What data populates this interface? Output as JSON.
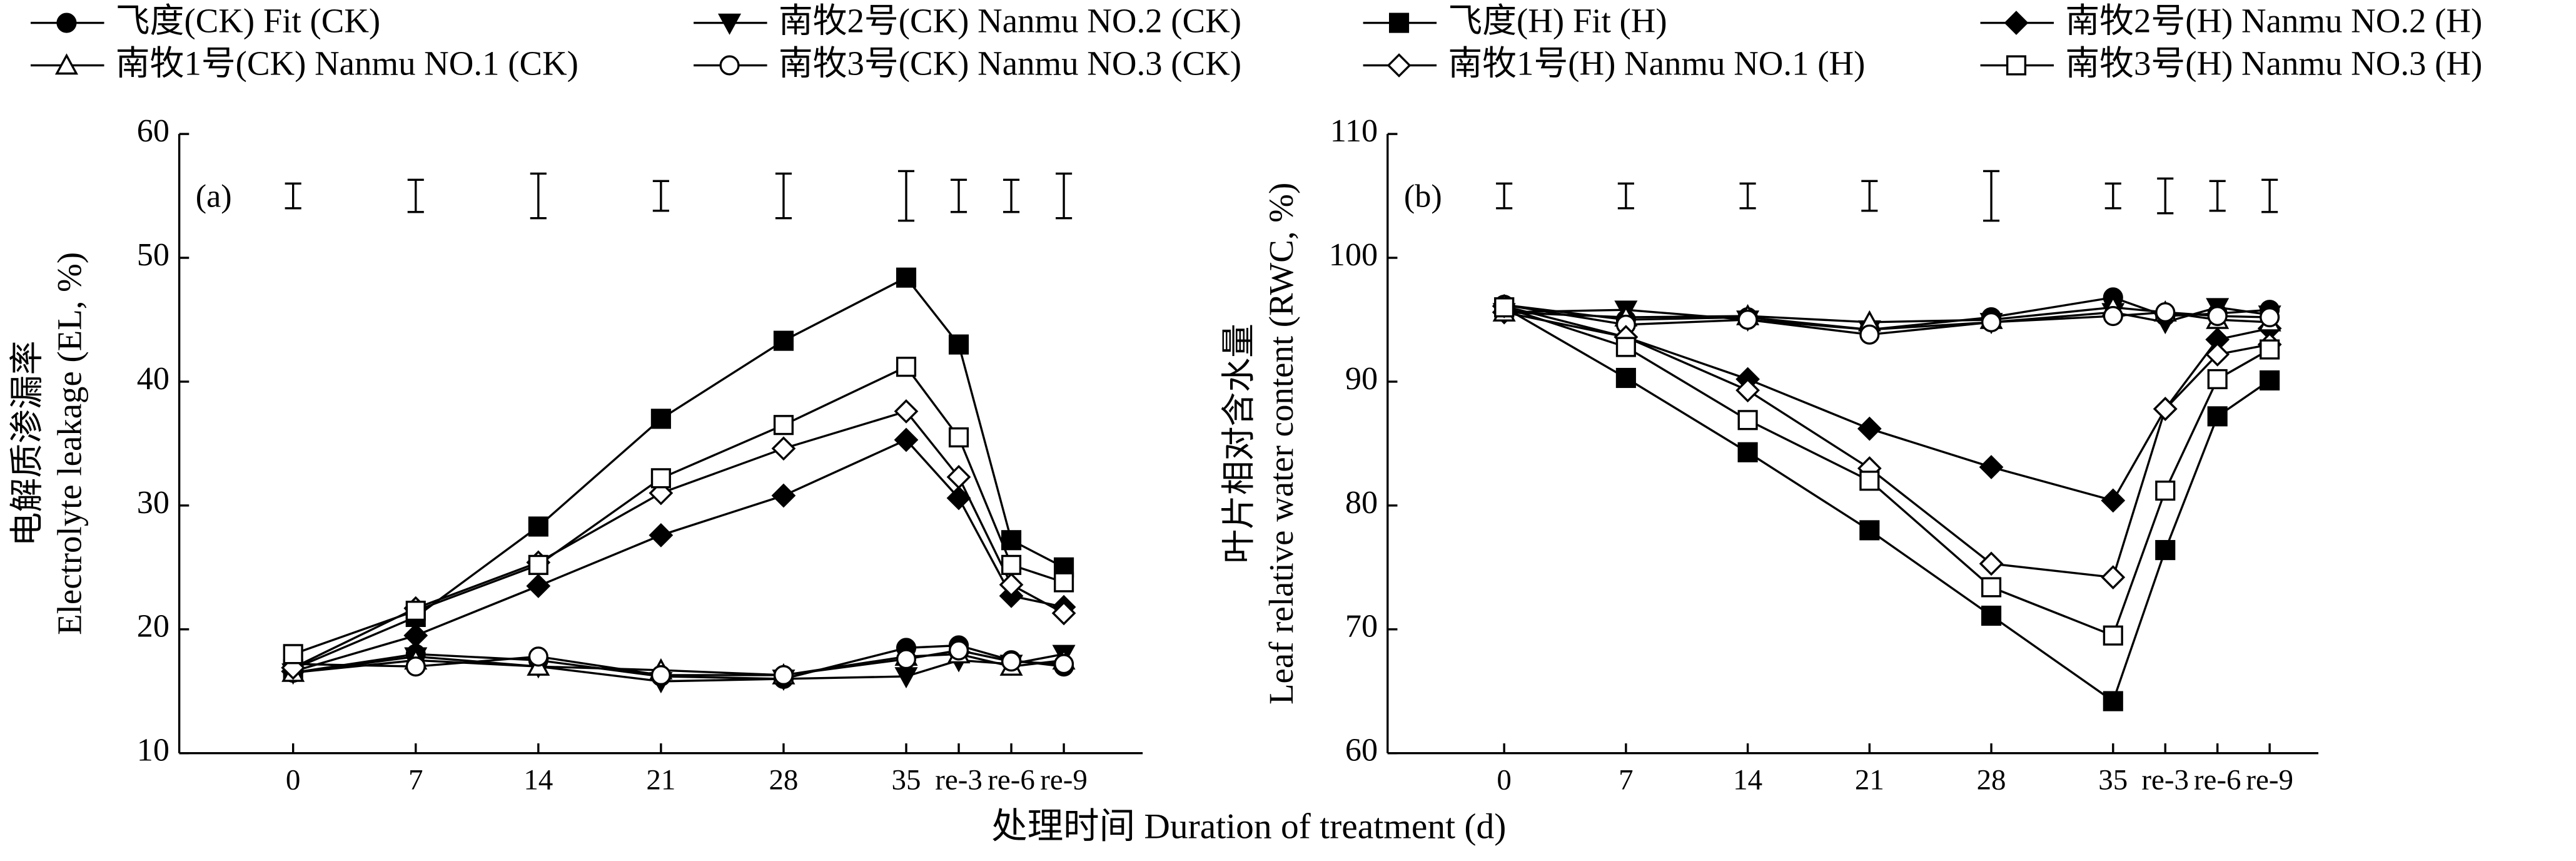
{
  "chart_data": [
    {
      "type": "line",
      "panel_label": "(a)",
      "ylabel": [
        "电解质渗漏率",
        "Electrolyte leakage (EL, %)"
      ],
      "xlabel": "处理时间 Duration of treatment (d)",
      "x": [
        0,
        7,
        14,
        21,
        28,
        35,
        38,
        41,
        44
      ],
      "xlim": [
        -6.5,
        48.5
      ],
      "xticks": [
        0,
        7,
        14,
        21,
        28,
        35,
        {
          "value": 38,
          "label": "re-3"
        },
        {
          "value": 41,
          "label": "re-6"
        },
        {
          "value": 44,
          "label": "re-9"
        }
      ],
      "ylim": [
        10,
        60
      ],
      "yticks": [
        10,
        20,
        30,
        40,
        50,
        60
      ],
      "error_bars": {
        "y": 55,
        "values": [
          1,
          1.3,
          1.8,
          1.2,
          1.8,
          2,
          1.3,
          1.3,
          1.8
        ]
      },
      "series": [
        {
          "name": "飞度(CK) Fit (CK)",
          "color": "#000000",
          "marker": "circle",
          "filled": true,
          "values": [
            16.5,
            18,
            17.5,
            16.2,
            16,
            18.5,
            18.7,
            17.5,
            17
          ]
        },
        {
          "name": "南牧2号(CK) Nanmu NO.2 (CK)",
          "color": "#000000",
          "marker": "triangle-down",
          "filled": true,
          "values": [
            16.5,
            17.8,
            17,
            15.8,
            16,
            16.2,
            17.5,
            17.2,
            18
          ]
        },
        {
          "name": "飞度(H) Fit (H)",
          "color": "#000000",
          "marker": "square",
          "filled": true,
          "values": [
            16.8,
            21,
            28.3,
            37,
            43.3,
            48.4,
            43,
            27.2,
            25
          ]
        },
        {
          "name": "南牧2号(H) Nanmu NO.2 (H)",
          "color": "#000000",
          "marker": "diamond",
          "filled": true,
          "values": [
            16.6,
            19.5,
            23.5,
            27.6,
            30.8,
            35.3,
            30.6,
            22.7,
            21.8
          ]
        },
        {
          "name": "南牧1号(CK) Nanmu NO.1 (CK)",
          "color": "#000000",
          "marker": "triangle-up",
          "filled": false,
          "values": [
            16.5,
            17.5,
            17,
            16.7,
            16.3,
            17.8,
            18,
            17,
            17.5
          ]
        },
        {
          "name": "南牧3号(CK) Nanmu NO.3 (CK)",
          "color": "#000000",
          "marker": "circle",
          "filled": false,
          "values": [
            17.2,
            17,
            17.8,
            16.3,
            16.3,
            17.6,
            18.3,
            17.4,
            17.2
          ]
        },
        {
          "name": "南牧1号(H) Nanmu NO.1 (H)",
          "color": "#000000",
          "marker": "diamond",
          "filled": false,
          "values": [
            16.9,
            21.7,
            25.4,
            31,
            34.6,
            37.6,
            32.3,
            23.6,
            21.3
          ]
        },
        {
          "name": "南牧3号(H) Nanmu NO.3 (H)",
          "color": "#000000",
          "marker": "square",
          "filled": false,
          "values": [
            18,
            21.5,
            25.2,
            32.2,
            36.5,
            41.2,
            35.5,
            25.2,
            23.8
          ]
        }
      ]
    },
    {
      "type": "line",
      "panel_label": "(b)",
      "ylabel": [
        "叶片相对含水量",
        "Leaf relative water content (RWC, %)"
      ],
      "x": [
        0,
        7,
        14,
        21,
        28,
        35,
        38,
        41,
        44
      ],
      "xlim": [
        -6.7,
        46.8
      ],
      "xticks": [
        0,
        7,
        14,
        21,
        28,
        35,
        {
          "value": 38,
          "label": "re-3"
        },
        {
          "value": 41,
          "label": "re-6"
        },
        {
          "value": 44,
          "label": "re-9"
        }
      ],
      "ylim": [
        60,
        110
      ],
      "yticks": [
        60,
        70,
        80,
        90,
        100,
        110
      ],
      "error_bars": {
        "y": 105,
        "values": [
          1,
          1,
          1,
          1.2,
          2,
          1,
          1.4,
          1.2,
          1.3
        ]
      },
      "series": [
        {
          "color": "#000000",
          "marker": "circle",
          "filled": true,
          "values": [
            96.2,
            95,
            95.2,
            94.2,
            95.2,
            96.8,
            95.3,
            95.5,
            95.8
          ]
        },
        {
          "color": "#000000",
          "marker": "triangle-down",
          "filled": true,
          "values": [
            95.6,
            95.8,
            95,
            94.2,
            94.8,
            95.6,
            94.8,
            96,
            95.4
          ]
        },
        {
          "color": "#000000",
          "marker": "square",
          "filled": true,
          "values": [
            96,
            90.3,
            84.3,
            78,
            71.1,
            64.2,
            76.4,
            87.2,
            90.1
          ]
        },
        {
          "color": "#000000",
          "marker": "diamond",
          "filled": true,
          "values": [
            95.6,
            93.6,
            90.2,
            86.2,
            83.1,
            80.4,
            87.8,
            93.4,
            94.3
          ]
        },
        {
          "color": "#000000",
          "marker": "triangle-up",
          "filled": false,
          "values": [
            95.6,
            95.2,
            95.3,
            94.8,
            95,
            96,
            95.6,
            95,
            94.8
          ]
        },
        {
          "color": "#000000",
          "marker": "circle",
          "filled": false,
          "values": [
            96.2,
            94.6,
            95,
            93.8,
            94.8,
            95.3,
            95.6,
            95.3,
            95.2
          ]
        },
        {
          "color": "#000000",
          "marker": "diamond",
          "filled": false,
          "values": [
            96.1,
            93.6,
            89.3,
            83,
            75.3,
            74.2,
            87.8,
            92.2,
            93
          ]
        },
        {
          "color": "#000000",
          "marker": "square",
          "filled": false,
          "values": [
            96,
            92.8,
            86.9,
            82,
            73.4,
            69.5,
            81.2,
            90.2,
            92.6
          ]
        }
      ]
    }
  ]
}
